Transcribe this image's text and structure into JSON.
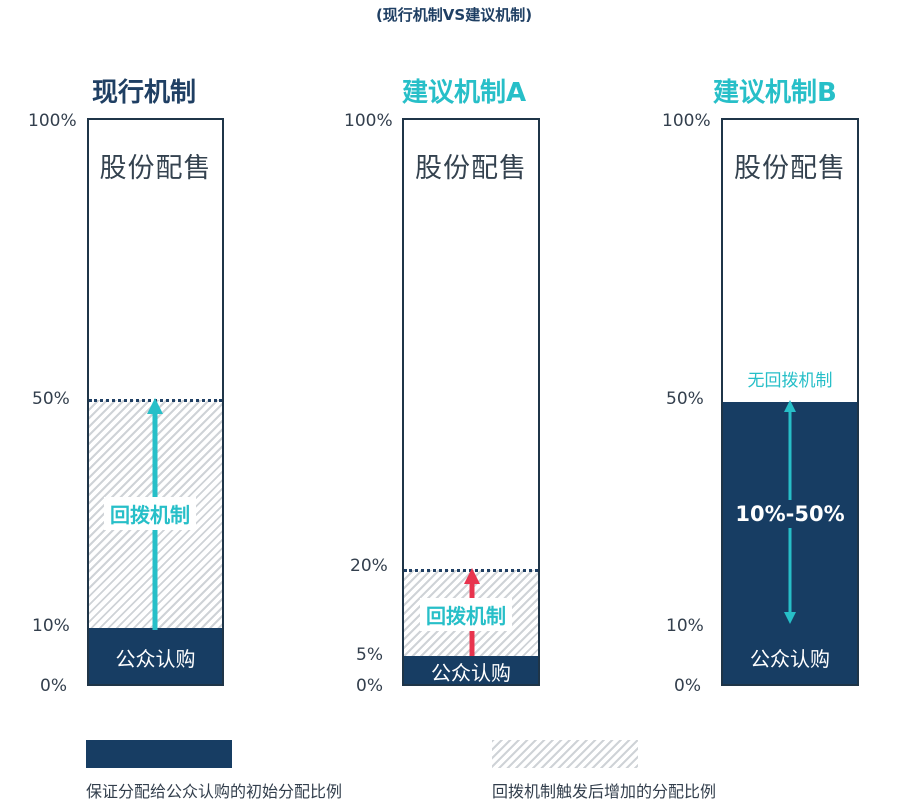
{
  "page": {
    "title": "(现行机制VS建议机制)"
  },
  "columns": {
    "current": {
      "title": "现行机制",
      "ticks": {
        "t100": "100%",
        "t50": "50%",
        "t10": "10%",
        "t0": "0%"
      },
      "stock_label": "股份配售",
      "public_label": "公众认购",
      "arrow_label": "回拨机制",
      "base_pct": 10,
      "max_pct": 50
    },
    "proposal_a": {
      "title": "建议机制A",
      "ticks": {
        "t100": "100%",
        "t20": "20%",
        "t5": "5%",
        "t0": "0%"
      },
      "stock_label": "股份配售",
      "public_label": "公众认购",
      "arrow_label": "回拨机制",
      "base_pct": 5,
      "max_pct": 20
    },
    "proposal_b": {
      "title": "建议机制B",
      "ticks": {
        "t100": "100%",
        "t50": "50%",
        "t10": "10%",
        "t0": "0%"
      },
      "stock_label": "股份配售",
      "no_clawback_label": "无回拨机制",
      "range_label": "10%-50%",
      "public_label": "公众认购",
      "fill_pct": 50
    }
  },
  "legend": {
    "solid_label": "保证分配给公众认购的初始分配比例",
    "hatch_label": "回拨机制触发后增加的分配比例"
  },
  "colors": {
    "navy": "#173d63",
    "teal": "#27bfc8",
    "red": "#e8344e",
    "title_dark": "#1f3f63"
  }
}
